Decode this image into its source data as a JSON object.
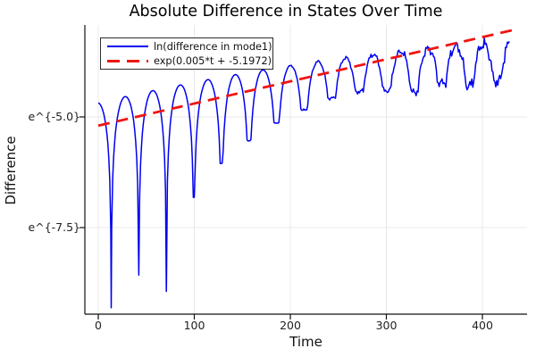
{
  "colors": {
    "series_blue": "#0000f0",
    "series_red": "#ee1511",
    "grid": "#e8e8e8",
    "axis": "#111111",
    "text": "#1a1a1a",
    "background": "#ffffff"
  },
  "chart_data": {
    "type": "line",
    "title": "Absolute Difference in States Over Time",
    "xlabel": "Time",
    "ylabel": "Difference",
    "grid": true,
    "x_axis": {
      "ticks": [
        0,
        100,
        200,
        300,
        400
      ],
      "tick_labels": [
        "0",
        "100",
        "200",
        "300",
        "400"
      ],
      "range": [
        -14,
        446
      ]
    },
    "y_axis": {
      "scale": "natural-log",
      "tick_labels": [
        "e^{-5.0}",
        "e^{-7.5}"
      ],
      "tick_ln_values": [
        -5.0,
        -7.5
      ],
      "range_ln": [
        -9.46,
        -2.92
      ]
    },
    "legend": {
      "position": "top-left",
      "entries": [
        "ln(difference in mode1)",
        "exp(0.005*t + -5.1972)"
      ]
    },
    "series": [
      {
        "name": "ln(difference in mode1)",
        "color": "#0000f0",
        "line_style": "solid",
        "line_width": 1.5,
        "model": {
          "kind": "ln-abs-of-oscillating-difference",
          "envelope_ln_intercept": -4.68,
          "envelope_ln_slope": 0.0051,
          "envelope_ln_quad": -4.5e-06,
          "oscillation_period": 57.4,
          "first_zero_t": 13.5,
          "t_start": 0,
          "t_end": 428,
          "sample_step_t": 1,
          "cusp_depths_below_envelope": [
            4.7,
            4.1,
            4.6,
            2.6,
            1.95,
            1.55,
            1.25,
            1.05,
            0.87,
            0.8,
            0.85,
            0.95,
            0.8,
            0.9,
            0.85
          ],
          "default_cusp_depth": 0.9,
          "jitter_onset_t": 150,
          "jitter_max": 0.17
        }
      },
      {
        "name": "exp(0.005*t + -5.1972)",
        "color": "#ee1511",
        "line_style": "dashed",
        "line_width": 2.8,
        "dash_pattern": "13 8",
        "model": {
          "kind": "exponential-fit",
          "slope": 0.005,
          "ln_intercept": -5.1972,
          "t_start": 0,
          "t_end": 433
        }
      }
    ]
  }
}
